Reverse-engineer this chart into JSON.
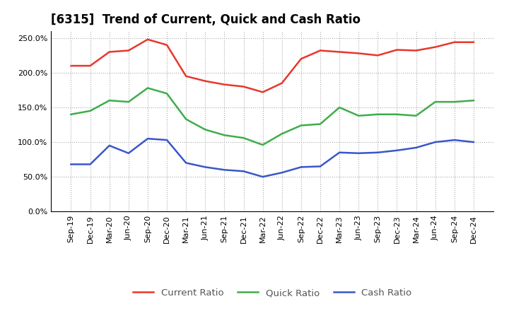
{
  "title": "[6315]  Trend of Current, Quick and Cash Ratio",
  "labels": [
    "Sep-19",
    "Dec-19",
    "Mar-20",
    "Jun-20",
    "Sep-20",
    "Dec-20",
    "Mar-21",
    "Jun-21",
    "Sep-21",
    "Dec-21",
    "Mar-22",
    "Jun-22",
    "Sep-22",
    "Dec-22",
    "Mar-23",
    "Jun-23",
    "Sep-23",
    "Dec-23",
    "Mar-24",
    "Jun-24",
    "Sep-24",
    "Dec-24"
  ],
  "current_ratio": [
    210,
    210,
    230,
    232,
    248,
    240,
    195,
    188,
    183,
    180,
    172,
    185,
    220,
    232,
    230,
    228,
    225,
    233,
    232,
    237,
    244,
    244
  ],
  "quick_ratio": [
    140,
    145,
    160,
    158,
    178,
    170,
    133,
    118,
    110,
    106,
    96,
    112,
    124,
    126,
    150,
    138,
    140,
    140,
    138,
    158,
    158,
    160
  ],
  "cash_ratio": [
    68,
    68,
    95,
    84,
    105,
    103,
    70,
    64,
    60,
    58,
    50,
    56,
    64,
    65,
    85,
    84,
    85,
    88,
    92,
    100,
    103,
    100
  ],
  "ylim": [
    0,
    260
  ],
  "yticks": [
    0,
    50,
    100,
    150,
    200,
    250
  ],
  "current_color": "#e8372c",
  "quick_color": "#3fad4a",
  "cash_color": "#3957c8",
  "line_width": 1.8,
  "bg_color": "#ffffff",
  "grid_color": "#aaaaaa",
  "title_fontsize": 12,
  "tick_fontsize": 8,
  "legend_fontsize": 9.5,
  "legend_text_color": "#555555"
}
